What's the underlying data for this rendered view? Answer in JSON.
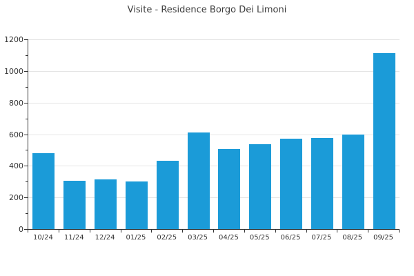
{
  "chart_data": {
    "type": "bar",
    "title": "Visite - Residence Borgo Dei Limoni",
    "categories": [
      "10/24",
      "11/24",
      "12/24",
      "01/25",
      "02/25",
      "03/25",
      "04/25",
      "05/25",
      "06/25",
      "07/25",
      "08/25",
      "09/25"
    ],
    "values": [
      480,
      304,
      316,
      300,
      430,
      612,
      508,
      537,
      570,
      578,
      598,
      1113
    ],
    "xlabel": "",
    "ylabel": "",
    "ylim": [
      0,
      1200
    ],
    "ytick_step": 200,
    "ytick_minor_step": 100,
    "grid": "horizontal-major",
    "legend": "none",
    "bar_color": "#1b9bd8",
    "grid_color": "#e4e4e4",
    "axis_color": "#333333",
    "label_color": "#333333",
    "title_color": "#3c3c3c",
    "background_color": "#ffffff"
  }
}
